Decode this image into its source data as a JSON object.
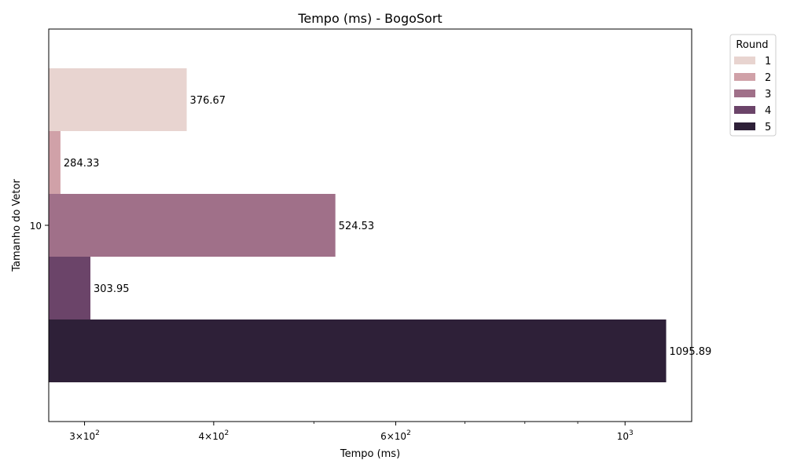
{
  "chart_data": {
    "type": "bar",
    "orientation": "horizontal",
    "title": "Tempo (ms) - BogoSort",
    "xlabel": "Tempo (ms)",
    "ylabel": "Tamanho do Vetor",
    "x_scale": "log",
    "xlim": [
      277,
      1160
    ],
    "x_ticks": [
      {
        "value": 300,
        "mantissa": "3",
        "exponent": "2"
      },
      {
        "value": 400,
        "mantissa": "4",
        "exponent": "2"
      },
      {
        "value": 600,
        "mantissa": "6",
        "exponent": "2"
      },
      {
        "value": 1000,
        "mantissa": "",
        "exponent": "3"
      }
    ],
    "x_minor_ticks": [
      500,
      700,
      800,
      900
    ],
    "categories": [
      "10"
    ],
    "series": [
      {
        "name": "1",
        "values": [
          376.67
        ],
        "color": "#e8d4d0",
        "label": "376.67"
      },
      {
        "name": "2",
        "values": [
          284.33
        ],
        "color": "#d0a1a8",
        "label": "284.33"
      },
      {
        "name": "3",
        "values": [
          524.53
        ],
        "color": "#a07089",
        "label": "524.53"
      },
      {
        "name": "4",
        "values": [
          303.95
        ],
        "color": "#6b4469",
        "label": "303.95"
      },
      {
        "name": "5",
        "values": [
          1095.89
        ],
        "color": "#2e2038",
        "label": "1095.89"
      }
    ],
    "legend": {
      "title": "Round",
      "position": "outside-top-right"
    },
    "grid": false
  }
}
